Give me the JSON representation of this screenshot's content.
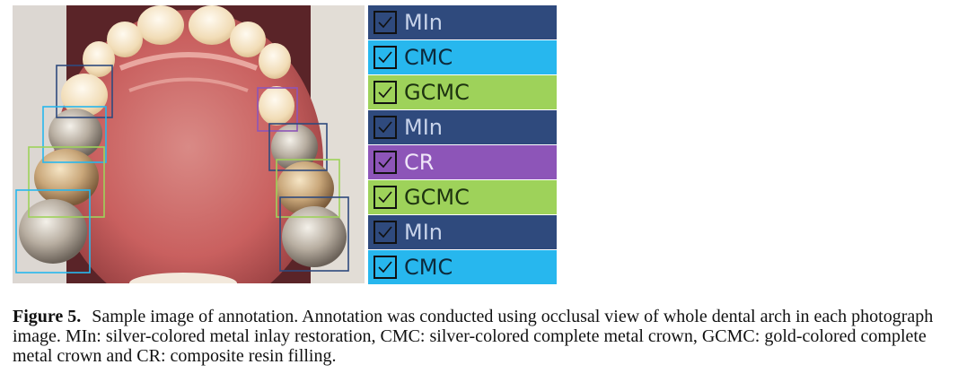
{
  "figure": {
    "photo_icon": "intraoral-occlusal-photo",
    "labels": [
      {
        "text": "MIn",
        "bg": "#2f4a7d",
        "fg": "#c8d3ea"
      },
      {
        "text": "CMC",
        "bg": "#27b7ee",
        "fg": "#0d2a3b"
      },
      {
        "text": "GCMC",
        "bg": "#9ed25a",
        "fg": "#1d3310"
      },
      {
        "text": "MIn",
        "bg": "#2f4a7d",
        "fg": "#c8d3ea"
      },
      {
        "text": "CR",
        "bg": "#8d55b8",
        "fg": "#f0e6f8"
      },
      {
        "text": "GCMC",
        "bg": "#9ed25a",
        "fg": "#1d3310"
      },
      {
        "text": "MIn",
        "bg": "#2f4a7d",
        "fg": "#c8d3ea"
      },
      {
        "text": "CMC",
        "bg": "#27b7ee",
        "fg": "#0d2a3b"
      }
    ]
  },
  "caption": {
    "label": "Figure 5.",
    "text": "Sample image of annotation. Annotation was conducted using occlusal view of whole dental arch in each photograph image. MIn: silver-colored metal inlay restoration, CMC: silver-colored complete metal crown, GCMC: gold-colored complete metal crown and CR: composite resin filling."
  }
}
